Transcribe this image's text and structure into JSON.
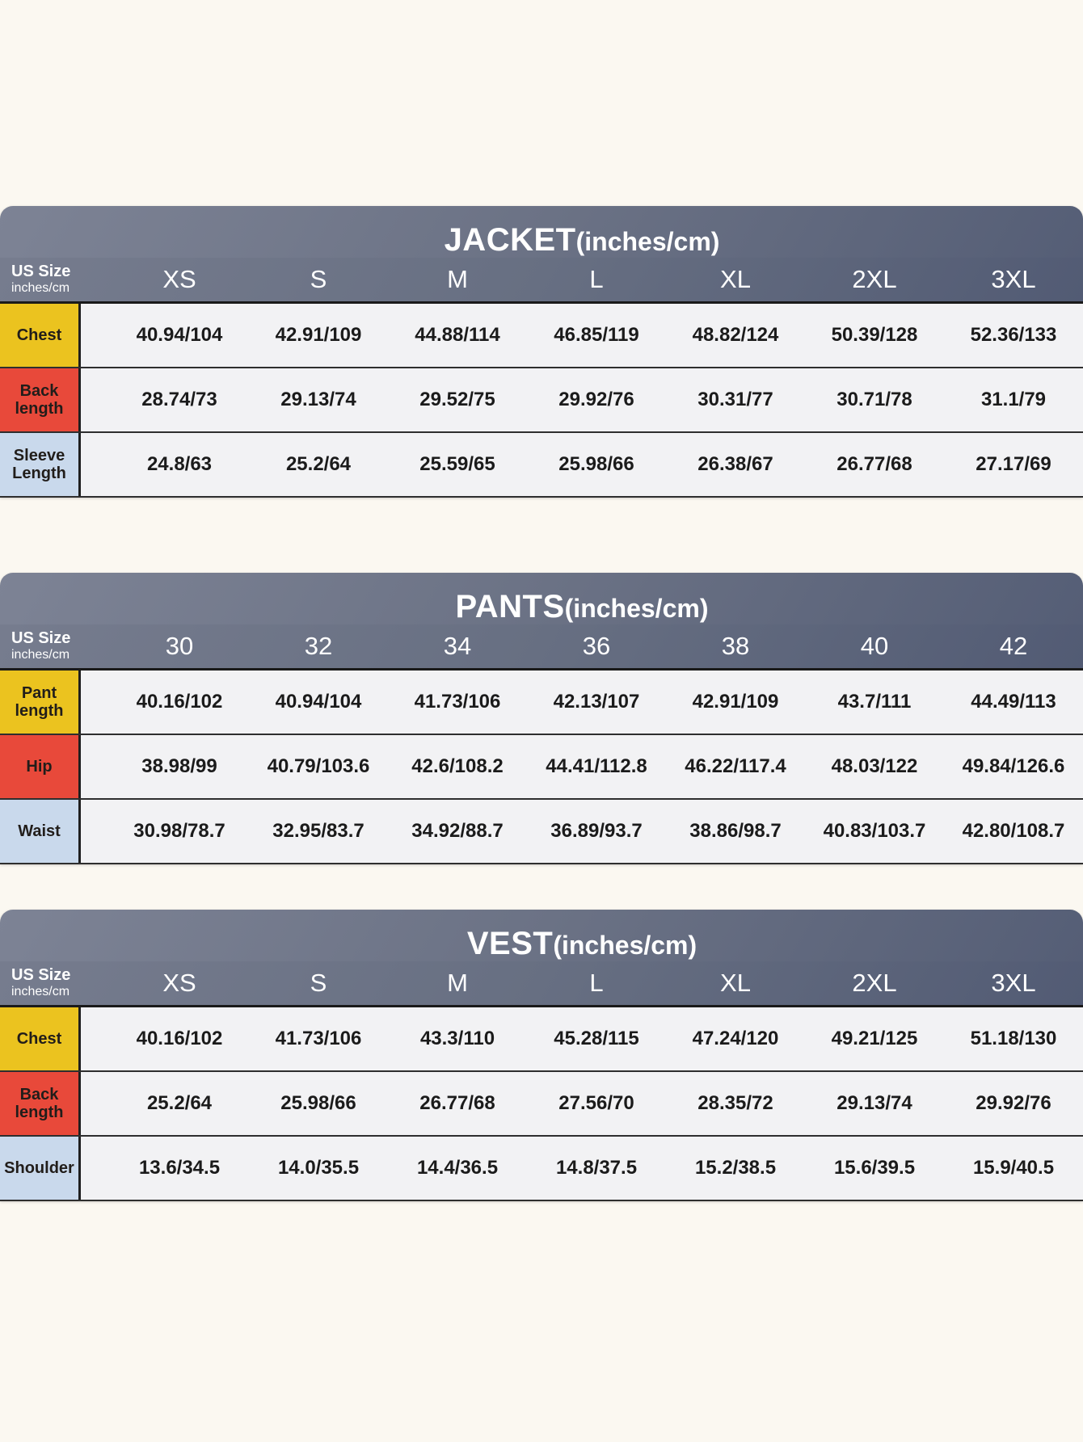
{
  "page": {
    "background": "#FBF8F1"
  },
  "palette": {
    "header_bg_left": "#7D8395",
    "header_bg_right": "#555E76",
    "header_text": "#FFFFFF",
    "label_yellow": "#EBC31F",
    "label_red": "#E8493A",
    "label_blue": "#C9D9EC",
    "cell_bg": "#F2F2F4",
    "body_text": "#1B1B1B",
    "page_bg": "#FBF8F1"
  },
  "chart_data": [
    {
      "type": "table",
      "id": "jacket",
      "title": "JACKET",
      "title_suffix": "(inches/cm)",
      "corner_label_line1": "US Size",
      "corner_label_line2": "inches/cm",
      "sizes": [
        "XS",
        "S",
        "M",
        "L",
        "XL",
        "2XL",
        "3XL"
      ],
      "rows": [
        {
          "label": "Chest",
          "color": "yellow",
          "values": [
            "40.94/104",
            "42.91/109",
            "44.88/114",
            "46.85/119",
            "48.82/124",
            "50.39/128",
            "52.36/133"
          ]
        },
        {
          "label": "Back length",
          "color": "red",
          "values": [
            "28.74/73",
            "29.13/74",
            "29.52/75",
            "29.92/76",
            "30.31/77",
            "30.71/78",
            "31.1/79"
          ]
        },
        {
          "label": "Sleeve Length",
          "color": "blue",
          "values": [
            "24.8/63",
            "25.2/64",
            "25.59/65",
            "25.98/66",
            "26.38/67",
            "26.77/68",
            "27.17/69"
          ]
        }
      ]
    },
    {
      "type": "table",
      "id": "pants",
      "title": "PANTS",
      "title_suffix": "(inches/cm)",
      "corner_label_line1": "US Size",
      "corner_label_line2": "inches/cm",
      "sizes": [
        "30",
        "32",
        "34",
        "36",
        "38",
        "40",
        "42"
      ],
      "rows": [
        {
          "label": "Pant length",
          "color": "yellow",
          "values": [
            "40.16/102",
            "40.94/104",
            "41.73/106",
            "42.13/107",
            "42.91/109",
            "43.7/111",
            "44.49/113"
          ]
        },
        {
          "label": "Hip",
          "color": "red",
          "values": [
            "38.98/99",
            "40.79/103.6",
            "42.6/108.2",
            "44.41/112.8",
            "46.22/117.4",
            "48.03/122",
            "49.84/126.6"
          ]
        },
        {
          "label": "Waist",
          "color": "blue",
          "values": [
            "30.98/78.7",
            "32.95/83.7",
            "34.92/88.7",
            "36.89/93.7",
            "38.86/98.7",
            "40.83/103.7",
            "42.80/108.7"
          ]
        }
      ]
    },
    {
      "type": "table",
      "id": "vest",
      "title": "VEST",
      "title_suffix": "(inches/cm)",
      "corner_label_line1": "US Size",
      "corner_label_line2": "inches/cm",
      "sizes": [
        "XS",
        "S",
        "M",
        "L",
        "XL",
        "2XL",
        "3XL"
      ],
      "rows": [
        {
          "label": "Chest",
          "color": "yellow",
          "values": [
            "40.16/102",
            "41.73/106",
            "43.3/110",
            "45.28/115",
            "47.24/120",
            "49.21/125",
            "51.18/130"
          ]
        },
        {
          "label": "Back length",
          "color": "red",
          "values": [
            "25.2/64",
            "25.98/66",
            "26.77/68",
            "27.56/70",
            "28.35/72",
            "29.13/74",
            "29.92/76"
          ]
        },
        {
          "label": "Shoulder",
          "color": "blue",
          "values": [
            "13.6/34.5",
            "14.0/35.5",
            "14.4/36.5",
            "14.8/37.5",
            "15.2/38.5",
            "15.6/39.5",
            "15.9/40.5"
          ]
        }
      ]
    }
  ]
}
